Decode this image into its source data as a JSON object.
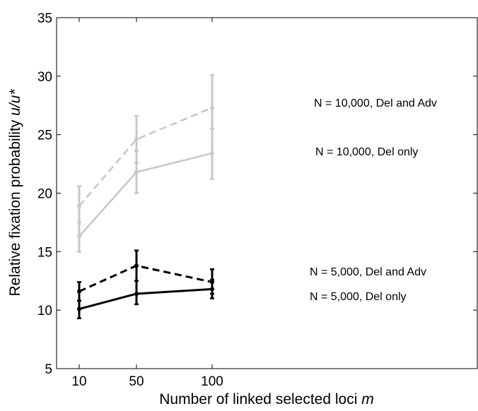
{
  "chart_data": {
    "type": "line",
    "title": "",
    "xlabel_prefix": "Number of linked selected loci ",
    "xlabel_var": "m",
    "ylabel_prefix": "Relative fixation probability ",
    "ylabel_var": "u/u*",
    "x": [
      10,
      50,
      100
    ],
    "xlim_labels": [
      "10",
      "50",
      "100"
    ],
    "ylim": [
      5,
      35
    ],
    "yticks": [
      5,
      10,
      15,
      20,
      25,
      30,
      35
    ],
    "grid": false,
    "series": [
      {
        "name": "N = 10,000, Del and Adv",
        "color": "#c8c8c8",
        "dash": true,
        "values": [
          18.9,
          24.6,
          27.3
        ],
        "err_low": [
          15.0,
          22.6,
          25.5
        ],
        "err_high": [
          20.6,
          26.6,
          30.1
        ]
      },
      {
        "name": "N = 10,000, Del only",
        "color": "#c8c8c8",
        "dash": false,
        "values": [
          16.3,
          21.8,
          23.4
        ],
        "err_low": [
          15.0,
          20.0,
          21.2
        ],
        "err_high": [
          17.5,
          23.6,
          25.5
        ]
      },
      {
        "name": "N = 5,000, Del and Adv",
        "color": "#000000",
        "dash": true,
        "values": [
          11.6,
          13.8,
          12.4
        ],
        "err_low": [
          10.8,
          12.5,
          11.4
        ],
        "err_high": [
          12.4,
          15.1,
          13.5
        ]
      },
      {
        "name": "N = 5,000, Del only",
        "color": "#000000",
        "dash": false,
        "values": [
          10.1,
          11.4,
          11.8
        ],
        "err_low": [
          9.3,
          10.5,
          11.0
        ],
        "err_high": [
          10.8,
          12.5,
          12.6
        ]
      }
    ]
  }
}
